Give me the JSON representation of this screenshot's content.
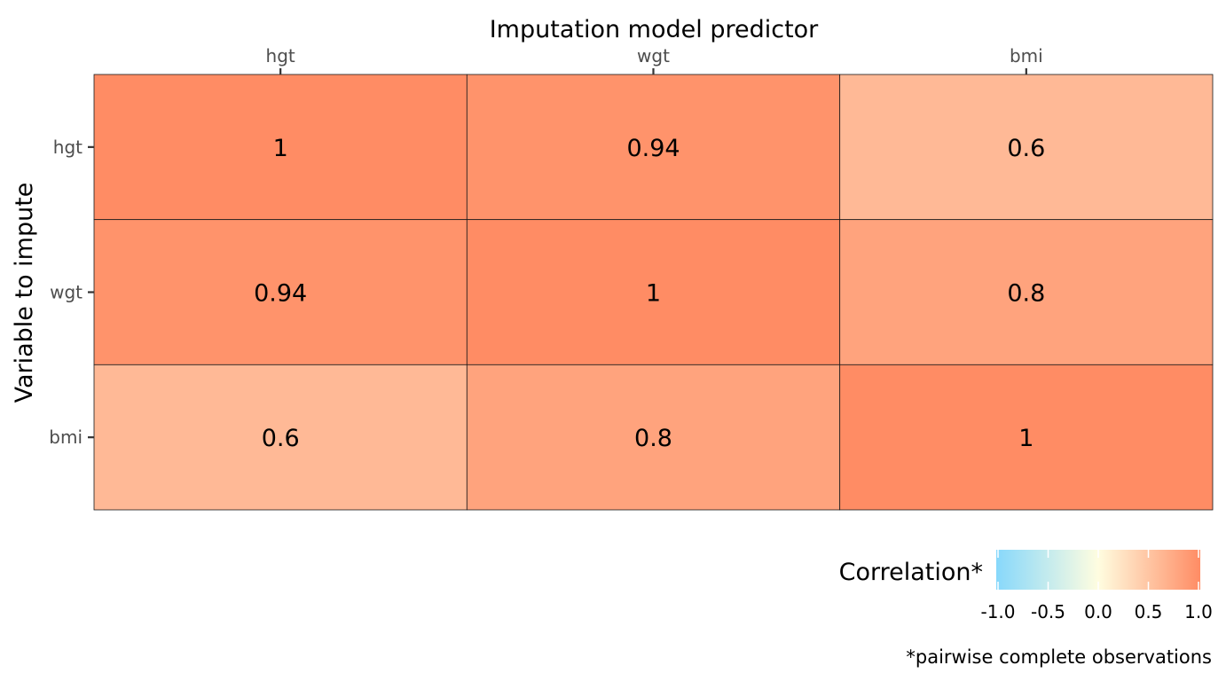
{
  "chart_data": {
    "type": "heatmap",
    "title": "",
    "xlabel": "Imputation model predictor",
    "ylabel": "Variable to impute",
    "x_categories": [
      "hgt",
      "wgt",
      "bmi"
    ],
    "y_categories": [
      "hgt",
      "wgt",
      "bmi"
    ],
    "x_axis_position": "top",
    "cells": [
      {
        "row": "hgt",
        "col": "hgt",
        "value": 1,
        "label": "1"
      },
      {
        "row": "hgt",
        "col": "wgt",
        "value": 0.94,
        "label": "0.94"
      },
      {
        "row": "hgt",
        "col": "bmi",
        "value": 0.6,
        "label": "0.6"
      },
      {
        "row": "wgt",
        "col": "hgt",
        "value": 0.94,
        "label": "0.94"
      },
      {
        "row": "wgt",
        "col": "wgt",
        "value": 1,
        "label": "1"
      },
      {
        "row": "wgt",
        "col": "bmi",
        "value": 0.8,
        "label": "0.8"
      },
      {
        "row": "bmi",
        "col": "hgt",
        "value": 0.6,
        "label": "0.6"
      },
      {
        "row": "bmi",
        "col": "wgt",
        "value": 0.8,
        "label": "0.8"
      },
      {
        "row": "bmi",
        "col": "bmi",
        "value": 1,
        "label": "1"
      }
    ],
    "legend": {
      "title": "Correlation*",
      "placement": "bottom-right",
      "range": [
        -1.0,
        1.0
      ],
      "ticks": [
        "-1.0",
        "-0.5",
        "0.0",
        "0.5",
        "1.0"
      ],
      "colors": {
        "low": "#87d8fb",
        "mid": "#fffde0",
        "high": "#ff8c64"
      }
    },
    "caption": "*pairwise complete observations",
    "grid": false
  }
}
